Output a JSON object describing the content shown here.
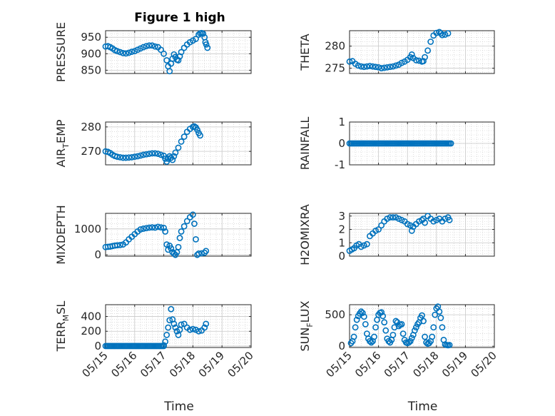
{
  "figure": {
    "title": "Figure 1 high"
  },
  "colors": {
    "marker": "#0072bd",
    "axes": "#262626",
    "grid": "#c8c8c8",
    "background": "#ffffff"
  },
  "chart_data": [
    {
      "id": "pressure",
      "type": "scatter",
      "ylabel": "PRESSURE",
      "ylim": [
        840,
        970
      ],
      "yticks": [
        850,
        900,
        950
      ],
      "xlim": [
        "05/15",
        "05/20"
      ],
      "xticks": [
        "05/15",
        "05/16",
        "05/17",
        "05/18",
        "05/19",
        "05/20"
      ],
      "grid": true,
      "title": "Figure 1 high",
      "points": [
        [
          0.0,
          922
        ],
        [
          0.08,
          923
        ],
        [
          0.16,
          920
        ],
        [
          0.24,
          916
        ],
        [
          0.32,
          911
        ],
        [
          0.4,
          908
        ],
        [
          0.5,
          905
        ],
        [
          0.6,
          902
        ],
        [
          0.7,
          901
        ],
        [
          0.8,
          903
        ],
        [
          0.9,
          906
        ],
        [
          1.0,
          908
        ],
        [
          1.1,
          912
        ],
        [
          1.2,
          916
        ],
        [
          1.3,
          920
        ],
        [
          1.4,
          923
        ],
        [
          1.5,
          925
        ],
        [
          1.6,
          925
        ],
        [
          1.7,
          922
        ],
        [
          1.8,
          920
        ],
        [
          1.9,
          912
        ],
        [
          2.0,
          900
        ],
        [
          2.1,
          880
        ],
        [
          2.15,
          862
        ],
        [
          2.2,
          847
        ],
        [
          2.25,
          870
        ],
        [
          2.3,
          885
        ],
        [
          2.35,
          898
        ],
        [
          2.4,
          890
        ],
        [
          2.45,
          882
        ],
        [
          2.5,
          880
        ],
        [
          2.55,
          892
        ],
        [
          2.6,
          905
        ],
        [
          2.7,
          918
        ],
        [
          2.8,
          928
        ],
        [
          2.9,
          935
        ],
        [
          3.0,
          940
        ],
        [
          3.1,
          945
        ],
        [
          3.2,
          958
        ],
        [
          3.25,
          962
        ],
        [
          3.3,
          963
        ],
        [
          3.35,
          961
        ],
        [
          3.4,
          950
        ],
        [
          3.43,
          935
        ],
        [
          3.46,
          928
        ],
        [
          3.5,
          918
        ]
      ]
    },
    {
      "id": "theta",
      "type": "scatter",
      "ylabel": "THETA",
      "ylim": [
        273.8,
        283.5
      ],
      "yticks": [
        275,
        280
      ],
      "xlim": [
        "05/15",
        "05/20"
      ],
      "xticks": [
        "05/15",
        "05/16",
        "05/17",
        "05/18",
        "05/19",
        "05/20"
      ],
      "grid": true,
      "points": [
        [
          0.0,
          276.5
        ],
        [
          0.1,
          276.6
        ],
        [
          0.2,
          276.0
        ],
        [
          0.3,
          275.6
        ],
        [
          0.4,
          275.4
        ],
        [
          0.5,
          275.3
        ],
        [
          0.6,
          275.4
        ],
        [
          0.7,
          275.5
        ],
        [
          0.8,
          275.4
        ],
        [
          0.9,
          275.3
        ],
        [
          1.0,
          275.2
        ],
        [
          1.1,
          275.0
        ],
        [
          1.2,
          275.1
        ],
        [
          1.3,
          275.2
        ],
        [
          1.4,
          275.3
        ],
        [
          1.5,
          275.4
        ],
        [
          1.6,
          275.6
        ],
        [
          1.7,
          275.8
        ],
        [
          1.8,
          276.2
        ],
        [
          1.9,
          276.5
        ],
        [
          2.0,
          276.9
        ],
        [
          2.1,
          277.5
        ],
        [
          2.15,
          278.1
        ],
        [
          2.2,
          277.3
        ],
        [
          2.3,
          276.8
        ],
        [
          2.4,
          276.7
        ],
        [
          2.5,
          276.5
        ],
        [
          2.55,
          276.6
        ],
        [
          2.6,
          277.5
        ],
        [
          2.7,
          279.0
        ],
        [
          2.8,
          281.0
        ],
        [
          2.9,
          282.4
        ],
        [
          3.0,
          283.0
        ],
        [
          3.1,
          283.2
        ],
        [
          3.15,
          282.9
        ],
        [
          3.2,
          282.5
        ],
        [
          3.3,
          282.6
        ],
        [
          3.4,
          282.9
        ]
      ]
    },
    {
      "id": "air_temp",
      "type": "scatter",
      "ylabel": "AIR_TEMP",
      "ylim": [
        264.5,
        282
      ],
      "yticks": [
        270,
        280
      ],
      "xlim": [
        "05/15",
        "05/20"
      ],
      "xticks": [
        "05/15",
        "05/16",
        "05/17",
        "05/18",
        "05/19",
        "05/20"
      ],
      "grid": true,
      "points": [
        [
          0.0,
          270.0
        ],
        [
          0.08,
          269.8
        ],
        [
          0.16,
          269.3
        ],
        [
          0.24,
          268.6
        ],
        [
          0.32,
          268.1
        ],
        [
          0.4,
          267.8
        ],
        [
          0.5,
          267.6
        ],
        [
          0.6,
          267.4
        ],
        [
          0.7,
          267.4
        ],
        [
          0.8,
          267.5
        ],
        [
          0.9,
          267.6
        ],
        [
          1.0,
          267.8
        ],
        [
          1.1,
          268.0
        ],
        [
          1.2,
          268.3
        ],
        [
          1.3,
          268.6
        ],
        [
          1.4,
          268.8
        ],
        [
          1.5,
          269.0
        ],
        [
          1.6,
          269.2
        ],
        [
          1.7,
          269.2
        ],
        [
          1.8,
          269.0
        ],
        [
          1.9,
          268.6
        ],
        [
          2.0,
          268.2
        ],
        [
          2.05,
          267.0
        ],
        [
          2.1,
          265.8
        ],
        [
          2.15,
          267.0
        ],
        [
          2.2,
          268.0
        ],
        [
          2.25,
          267.4
        ],
        [
          2.3,
          266.5
        ],
        [
          2.35,
          268.0
        ],
        [
          2.4,
          269.5
        ],
        [
          2.5,
          271.5
        ],
        [
          2.6,
          274.0
        ],
        [
          2.7,
          276.0
        ],
        [
          2.8,
          278.0
        ],
        [
          2.9,
          279.2
        ],
        [
          3.0,
          280.0
        ],
        [
          3.05,
          280.2
        ],
        [
          3.1,
          279.8
        ],
        [
          3.15,
          278.8
        ],
        [
          3.2,
          277.5
        ],
        [
          3.25,
          276.5
        ]
      ]
    },
    {
      "id": "rainfall",
      "type": "scatter",
      "ylabel": "RAINFALL",
      "ylim": [
        -1,
        1
      ],
      "yticks": [
        -1,
        0,
        1
      ],
      "xlim": [
        "05/15",
        "05/20"
      ],
      "xticks": [
        "05/15",
        "05/16",
        "05/17",
        "05/18",
        "05/19",
        "05/20"
      ],
      "grid": true,
      "x_range": [
        0.0,
        3.5
      ],
      "n_points": 70,
      "constant_value": 0
    },
    {
      "id": "mixdepth",
      "type": "scatter",
      "ylabel": "MIXDEPTH",
      "ylim": [
        -50,
        1600
      ],
      "yticks": [
        0,
        1000
      ],
      "xlim": [
        "05/15",
        "05/20"
      ],
      "xticks": [
        "05/15",
        "05/16",
        "05/17",
        "05/18",
        "05/19",
        "05/20"
      ],
      "grid": true,
      "points": [
        [
          0.0,
          300
        ],
        [
          0.08,
          310
        ],
        [
          0.16,
          320
        ],
        [
          0.24,
          340
        ],
        [
          0.32,
          360
        ],
        [
          0.4,
          370
        ],
        [
          0.5,
          380
        ],
        [
          0.6,
          400
        ],
        [
          0.7,
          480
        ],
        [
          0.8,
          600
        ],
        [
          0.9,
          700
        ],
        [
          1.0,
          800
        ],
        [
          1.1,
          900
        ],
        [
          1.2,
          980
        ],
        [
          1.3,
          1010
        ],
        [
          1.4,
          1030
        ],
        [
          1.5,
          1050
        ],
        [
          1.6,
          1060
        ],
        [
          1.7,
          1050
        ],
        [
          1.8,
          1080
        ],
        [
          1.9,
          1060
        ],
        [
          2.0,
          1040
        ],
        [
          2.05,
          900
        ],
        [
          2.1,
          400
        ],
        [
          2.15,
          200
        ],
        [
          2.2,
          350
        ],
        [
          2.25,
          250
        ],
        [
          2.3,
          100
        ],
        [
          2.35,
          50
        ],
        [
          2.4,
          0
        ],
        [
          2.45,
          100
        ],
        [
          2.5,
          300
        ],
        [
          2.55,
          650
        ],
        [
          2.6,
          900
        ],
        [
          2.7,
          1100
        ],
        [
          2.8,
          1300
        ],
        [
          2.9,
          1450
        ],
        [
          3.0,
          1550
        ],
        [
          3.05,
          1200
        ],
        [
          3.1,
          600
        ],
        [
          3.15,
          0
        ],
        [
          3.2,
          50
        ],
        [
          3.3,
          60
        ],
        [
          3.4,
          80
        ],
        [
          3.45,
          150
        ]
      ]
    },
    {
      "id": "h2omixra",
      "type": "scatter",
      "ylabel": "H2OMIXRA",
      "ylim": [
        0,
        3.2
      ],
      "yticks": [
        0,
        1,
        2,
        3
      ],
      "xlim": [
        "05/15",
        "05/20"
      ],
      "xticks": [
        "05/15",
        "05/16",
        "05/17",
        "05/18",
        "05/19",
        "05/20"
      ],
      "grid": true,
      "points": [
        [
          0.0,
          0.4
        ],
        [
          0.08,
          0.5
        ],
        [
          0.16,
          0.6
        ],
        [
          0.24,
          0.8
        ],
        [
          0.32,
          0.9
        ],
        [
          0.4,
          0.7
        ],
        [
          0.5,
          0.8
        ],
        [
          0.6,
          0.9
        ],
        [
          0.7,
          1.5
        ],
        [
          0.8,
          1.7
        ],
        [
          0.9,
          1.9
        ],
        [
          1.0,
          2.0
        ],
        [
          1.1,
          2.3
        ],
        [
          1.2,
          2.6
        ],
        [
          1.3,
          2.8
        ],
        [
          1.4,
          2.9
        ],
        [
          1.5,
          2.9
        ],
        [
          1.6,
          2.9
        ],
        [
          1.7,
          2.8
        ],
        [
          1.8,
          2.7
        ],
        [
          1.9,
          2.6
        ],
        [
          2.0,
          2.4
        ],
        [
          2.1,
          2.3
        ],
        [
          2.15,
          1.9
        ],
        [
          2.2,
          2.2
        ],
        [
          2.3,
          2.4
        ],
        [
          2.4,
          2.6
        ],
        [
          2.5,
          2.7
        ],
        [
          2.55,
          2.8
        ],
        [
          2.6,
          2.5
        ],
        [
          2.7,
          3.0
        ],
        [
          2.8,
          2.8
        ],
        [
          2.9,
          2.6
        ],
        [
          3.0,
          2.7
        ],
        [
          3.1,
          2.8
        ],
        [
          3.2,
          2.6
        ],
        [
          3.3,
          2.8
        ],
        [
          3.4,
          2.9
        ],
        [
          3.45,
          2.7
        ]
      ]
    },
    {
      "id": "terr_msl",
      "type": "scatter",
      "ylabel": "TERR_MSL",
      "ylim": [
        -20,
        560
      ],
      "yticks": [
        0,
        200,
        400
      ],
      "xlim": [
        "05/15",
        "05/20"
      ],
      "xticks": [
        "05/15",
        "05/16",
        "05/17",
        "05/18",
        "05/19",
        "05/20"
      ],
      "xlabel": "Time",
      "grid": true,
      "x_range": [
        0.0,
        2.0
      ],
      "n_points": 40,
      "constant_value": 0,
      "points": [
        [
          2.0,
          10
        ],
        [
          2.05,
          60
        ],
        [
          2.1,
          150
        ],
        [
          2.15,
          250
        ],
        [
          2.2,
          350
        ],
        [
          2.25,
          500
        ],
        [
          2.3,
          360
        ],
        [
          2.35,
          300
        ],
        [
          2.4,
          250
        ],
        [
          2.45,
          200
        ],
        [
          2.5,
          150
        ],
        [
          2.55,
          220
        ],
        [
          2.6,
          290
        ],
        [
          2.7,
          300
        ],
        [
          2.8,
          250
        ],
        [
          2.9,
          220
        ],
        [
          3.0,
          230
        ],
        [
          3.1,
          220
        ],
        [
          3.2,
          200
        ],
        [
          3.3,
          210
        ],
        [
          3.4,
          250
        ],
        [
          3.45,
          300
        ]
      ]
    },
    {
      "id": "sun_flux",
      "type": "scatter",
      "ylabel": "SUN_FLUX",
      "ylim": [
        -20,
        660
      ],
      "yticks": [
        0,
        500
      ],
      "xlim": [
        "05/15",
        "05/20"
      ],
      "xticks": [
        "05/15",
        "05/16",
        "05/17",
        "05/18",
        "05/19",
        "05/20"
      ],
      "xlabel": "Time",
      "grid": true,
      "points": [
        [
          0.05,
          50
        ],
        [
          0.1,
          80
        ],
        [
          0.15,
          150
        ],
        [
          0.2,
          300
        ],
        [
          0.25,
          420
        ],
        [
          0.3,
          480
        ],
        [
          0.35,
          520
        ],
        [
          0.4,
          550
        ],
        [
          0.45,
          530
        ],
        [
          0.5,
          470
        ],
        [
          0.55,
          350
        ],
        [
          0.6,
          200
        ],
        [
          0.65,
          120
        ],
        [
          0.7,
          80
        ],
        [
          0.75,
          60
        ],
        [
          0.8,
          80
        ],
        [
          0.85,
          150
        ],
        [
          0.9,
          300
        ],
        [
          0.95,
          420
        ],
        [
          1.0,
          500
        ],
        [
          1.05,
          530
        ],
        [
          1.1,
          540
        ],
        [
          1.15,
          480
        ],
        [
          1.2,
          380
        ],
        [
          1.25,
          250
        ],
        [
          1.3,
          120
        ],
        [
          1.35,
          80
        ],
        [
          1.4,
          60
        ],
        [
          1.45,
          100
        ],
        [
          1.5,
          180
        ],
        [
          1.55,
          300
        ],
        [
          1.6,
          400
        ],
        [
          1.65,
          380
        ],
        [
          1.7,
          320
        ],
        [
          1.75,
          340
        ],
        [
          1.8,
          350
        ],
        [
          1.85,
          200
        ],
        [
          1.9,
          100
        ],
        [
          1.95,
          60
        ],
        [
          2.0,
          50
        ],
        [
          2.05,
          60
        ],
        [
          2.1,
          80
        ],
        [
          2.15,
          130
        ],
        [
          2.2,
          180
        ],
        [
          2.25,
          250
        ],
        [
          2.3,
          300
        ],
        [
          2.35,
          350
        ],
        [
          2.4,
          380
        ],
        [
          2.45,
          450
        ],
        [
          2.5,
          490
        ],
        [
          2.55,
          400
        ],
        [
          2.6,
          150
        ],
        [
          2.65,
          60
        ],
        [
          2.7,
          40
        ],
        [
          2.75,
          50
        ],
        [
          2.8,
          80
        ],
        [
          2.85,
          150
        ],
        [
          2.9,
          300
        ],
        [
          2.95,
          500
        ],
        [
          3.0,
          600
        ],
        [
          3.05,
          630
        ],
        [
          3.1,
          550
        ],
        [
          3.15,
          450
        ],
        [
          3.2,
          300
        ],
        [
          3.25,
          100
        ],
        [
          3.3,
          30
        ],
        [
          3.35,
          20
        ],
        [
          3.4,
          15
        ],
        [
          3.45,
          20
        ]
      ]
    }
  ]
}
